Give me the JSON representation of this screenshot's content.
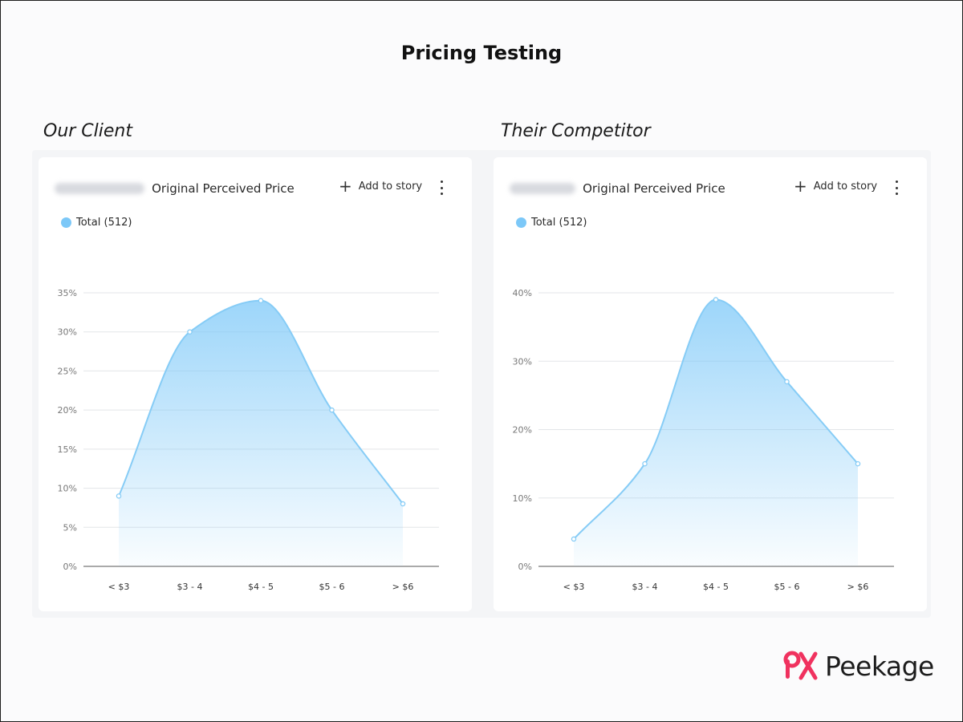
{
  "page": {
    "title": "Pricing Testing"
  },
  "sections": {
    "left_label": "Our Client",
    "right_label": "Their Competitor"
  },
  "colors": {
    "series": "#7cc8f8",
    "line": "#86ccf6",
    "brand": "#f0325f"
  },
  "cards": [
    {
      "title": "Original Perceived Price",
      "add_label": "Add to story",
      "legend": "Total (512)"
    },
    {
      "title": "Original Perceived Price",
      "add_label": "Add to story",
      "legend": "Total (512)"
    }
  ],
  "brand": {
    "name": "Peekage",
    "icon": "pk-logo-icon"
  },
  "chart_data": [
    {
      "type": "area",
      "categories": [
        "< $3",
        "$3 - 4",
        "$4 - 5",
        "$5 - 6",
        "> $6"
      ],
      "series": [
        {
          "name": "Total (512)",
          "values": [
            9,
            30,
            34,
            20,
            8
          ]
        }
      ],
      "ylim": [
        0,
        35
      ],
      "yticks": [
        0,
        5,
        10,
        15,
        20,
        25,
        30,
        35
      ],
      "ytick_labels": [
        "0%",
        "5%",
        "10%",
        "15%",
        "20%",
        "25%",
        "30%",
        "35%"
      ],
      "grid": true,
      "legend": "top-left"
    },
    {
      "type": "area",
      "categories": [
        "< $3",
        "$3 - 4",
        "$4 - 5",
        "$5 - 6",
        "> $6"
      ],
      "series": [
        {
          "name": "Total (512)",
          "values": [
            4,
            15,
            39,
            27,
            15
          ]
        }
      ],
      "ylim": [
        0,
        40
      ],
      "yticks": [
        0,
        10,
        20,
        30,
        40
      ],
      "ytick_labels": [
        "0%",
        "10%",
        "20%",
        "30%",
        "40%"
      ],
      "grid": true,
      "legend": "top-left"
    }
  ]
}
